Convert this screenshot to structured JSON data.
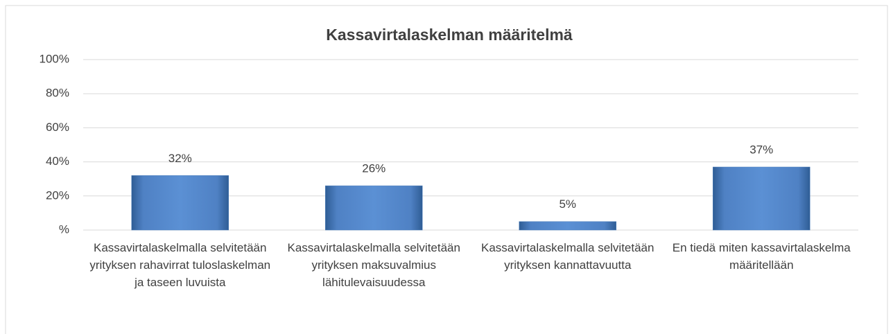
{
  "chart_data": {
    "type": "bar",
    "title": "Kassavirtalaskelman määritelmä",
    "categories": [
      "Kassavirtalaskelmalla selvitetään yrityksen rahavirrat tuloslaskelman ja taseen luvuista",
      "Kassavirtalaskelmalla selvitetään yrityksen maksuvalmius lähitulevaisuudessa",
      "Kassavirtalaskelmalla selvitetään yrityksen kannattavuutta",
      "En tiedä miten kassavirtalaskelma määritellään"
    ],
    "values": [
      32,
      26,
      5,
      37
    ],
    "value_labels": [
      "32%",
      "26%",
      "5%",
      "37%"
    ],
    "color": "#4f81bd",
    "ylim": [
      0,
      100
    ],
    "yticks": [
      {
        "value": 0,
        "label": "%"
      },
      {
        "value": 20,
        "label": "20%"
      },
      {
        "value": 40,
        "label": "40%"
      },
      {
        "value": 60,
        "label": "60%"
      },
      {
        "value": 80,
        "label": "80%"
      },
      {
        "value": 100,
        "label": "100%"
      }
    ],
    "grid": true
  }
}
